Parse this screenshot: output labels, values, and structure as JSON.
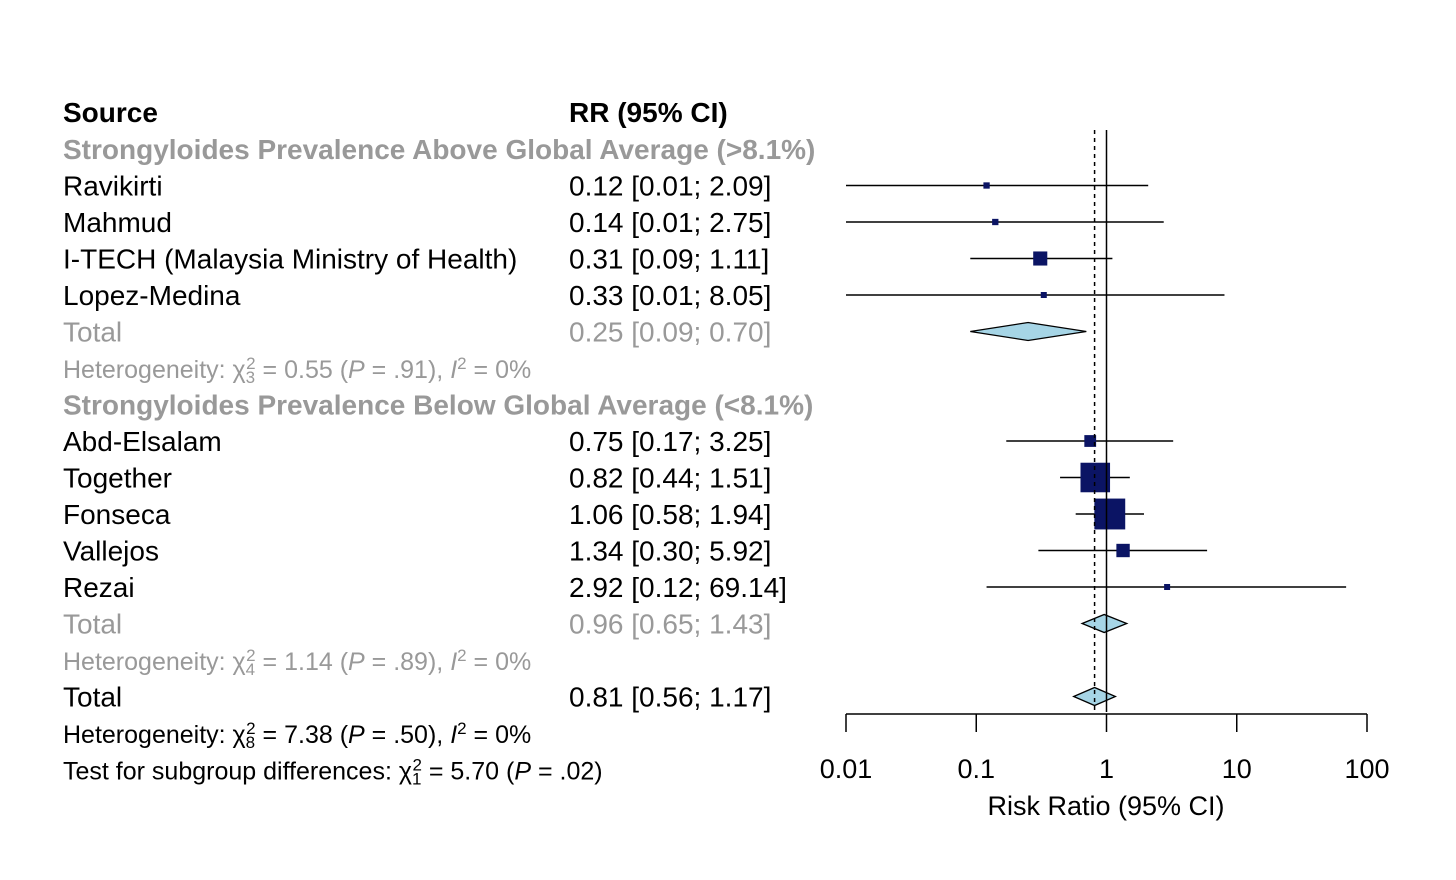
{
  "headers": {
    "source": "Source",
    "rr": "RR (95% CI)"
  },
  "chart_data": {
    "type": "forest",
    "xlabel": "Risk Ratio (95% CI)",
    "scale": "log",
    "xlim": [
      0.01,
      100
    ],
    "ticks": [
      0.01,
      0.1,
      1,
      10,
      100
    ],
    "tick_labels": [
      "0.01",
      "0.1",
      "1",
      "10",
      "100"
    ],
    "reference_line": 1,
    "overall_line": 0.81,
    "colors": {
      "box": "#0b1464",
      "diamond": "#a6d5e6",
      "muted": "#999999",
      "text": "#000000"
    },
    "groups": [
      {
        "name": "Strongyloides Prevalence Above Global Average (>8.1%)",
        "studies": [
          {
            "source": "Ravikirti",
            "rr": 0.12,
            "lower": 0.01,
            "upper": 2.09,
            "ci_text": "0.12 [0.01;  2.09]",
            "weight": 1
          },
          {
            "source": "Mahmud",
            "rr": 0.14,
            "lower": 0.01,
            "upper": 2.75,
            "ci_text": "0.14 [0.01;  2.75]",
            "weight": 1
          },
          {
            "source": "I-TECH (Malaysia Ministry of Health)",
            "rr": 0.31,
            "lower": 0.09,
            "upper": 1.11,
            "ci_text": "0.31 [0.09;  1.11]",
            "weight": 5
          },
          {
            "source": "Lopez-Medina",
            "rr": 0.33,
            "lower": 0.01,
            "upper": 8.05,
            "ci_text": "0.33 [0.01;  8.05]",
            "weight": 0.8
          }
        ],
        "total": {
          "label": "Total",
          "rr": 0.25,
          "lower": 0.09,
          "upper": 0.7,
          "ci_text": "0.25 [0.09;  0.70]"
        },
        "heterogeneity": {
          "prefix": "Heterogeneity: ",
          "chi": "χ",
          "df": "3",
          "sq": "2",
          "mid": " = 0.55 (",
          "p": "P",
          "pval": " = .91), ",
          "i": "I",
          "isq": "2",
          "end": " = 0%"
        }
      },
      {
        "name": "Strongyloides Prevalence Below Global Average (<8.1%)",
        "studies": [
          {
            "source": "Abd-Elsalam",
            "rr": 0.75,
            "lower": 0.17,
            "upper": 3.25,
            "ci_text": "0.75 [0.17;  3.25]",
            "weight": 3.5
          },
          {
            "source": "Together",
            "rr": 0.82,
            "lower": 0.44,
            "upper": 1.51,
            "ci_text": "0.82 [0.44;  1.51]",
            "weight": 22
          },
          {
            "source": "Fonseca",
            "rr": 1.06,
            "lower": 0.58,
            "upper": 1.94,
            "ci_text": "1.06 [0.58;  1.94]",
            "weight": 24
          },
          {
            "source": "Vallejos",
            "rr": 1.34,
            "lower": 0.3,
            "upper": 5.92,
            "ci_text": "1.34 [0.30;  5.92]",
            "weight": 4.5
          },
          {
            "source": "Rezai",
            "rr": 2.92,
            "lower": 0.12,
            "upper": 69.14,
            "ci_text": "2.92 [0.12; 69.14]",
            "weight": 0.8
          }
        ],
        "total": {
          "label": "Total",
          "rr": 0.96,
          "lower": 0.65,
          "upper": 1.43,
          "ci_text": "0.96 [0.65;  1.43]"
        },
        "heterogeneity": {
          "prefix": "Heterogeneity: ",
          "chi": "χ",
          "df": "4",
          "sq": "2",
          "mid": " = 1.14 (",
          "p": "P",
          "pval": " = .89), ",
          "i": "I",
          "isq": "2",
          "end": " = 0%"
        }
      }
    ],
    "overall": {
      "label": "Total",
      "rr": 0.81,
      "lower": 0.56,
      "upper": 1.17,
      "ci_text": "0.81 [0.56;  1.17]",
      "heterogeneity": {
        "prefix": "Heterogeneity: ",
        "chi": "χ",
        "df": "8",
        "sq": "2",
        "mid": " = 7.38 (",
        "p": "P",
        "pval": " = .50), ",
        "i": "I",
        "isq": "2",
        "end": " = 0%"
      },
      "subgroup_test": {
        "prefix": "Test for subgroup differences: ",
        "chi": "χ",
        "df": "1",
        "sq": "2",
        "mid": " = 5.70 (",
        "p": "P",
        "pval": " = .02)"
      }
    }
  }
}
